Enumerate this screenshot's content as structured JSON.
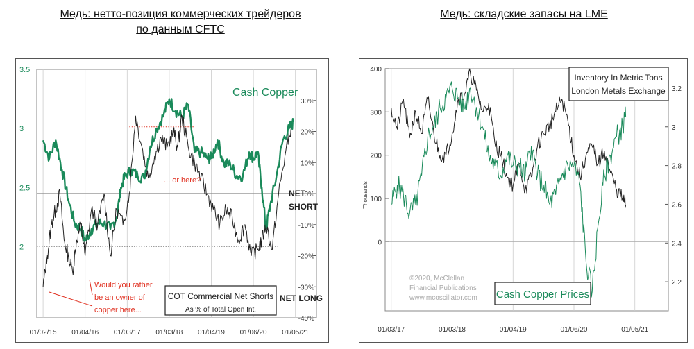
{
  "titles": {
    "left_line1": "Медь: нетто-позиция коммерческих трейдеров",
    "left_line2": "по данным CFTC",
    "right": "Медь: складские запасы на LME"
  },
  "colors": {
    "price": "#1a8a5a",
    "ink": "#222222",
    "red": "#e03020",
    "grid": "#cccccc",
    "left_axis": "#1a8a5a"
  },
  "chart_data": [
    {
      "type": "line",
      "title": "Медь: нетто-позиция коммерческих трейдеров по данным CFTC",
      "x_tick_labels": [
        "01/02/15",
        "01/04/16",
        "01/03/17",
        "01/03/18",
        "01/04/19",
        "01/06/20",
        "01/05/21"
      ],
      "y_left": {
        "label": "Cash Copper",
        "ticks": [
          "3.5",
          "3",
          "2.5",
          "2"
        ],
        "range": [
          1.4,
          3.5
        ]
      },
      "y_right": {
        "label": "COT Commercial Net Shorts, % of Total Open Int.",
        "ticks": [
          "30%",
          "20%",
          "10%",
          "0%",
          "-10%",
          "-20%",
          "-30%",
          "-40%"
        ],
        "range": [
          -40,
          40
        ]
      },
      "series": [
        {
          "name": "Cash Copper",
          "axis": "left",
          "x": [
            2015.0,
            2015.15,
            2015.3,
            2015.45,
            2015.6,
            2015.75,
            2015.9,
            2016.0,
            2016.15,
            2016.3,
            2016.45,
            2016.6,
            2016.75,
            2016.85,
            2016.95,
            2017.1,
            2017.25,
            2017.4,
            2017.55,
            2017.7,
            2017.85,
            2018.0,
            2018.15,
            2018.3,
            2018.45,
            2018.6,
            2018.75,
            2018.9,
            2019.0,
            2019.15,
            2019.3,
            2019.45,
            2019.6,
            2019.75,
            2019.9,
            2020.0,
            2020.1,
            2020.2,
            2020.3,
            2020.4,
            2020.55,
            2020.7,
            2020.85,
            2020.95
          ],
          "values": [
            2.9,
            2.75,
            2.9,
            2.65,
            2.4,
            2.2,
            2.15,
            2.05,
            2.15,
            2.2,
            2.2,
            2.15,
            2.25,
            2.5,
            2.6,
            2.65,
            2.6,
            2.58,
            2.85,
            3.0,
            3.1,
            3.25,
            3.15,
            3.1,
            3.2,
            2.8,
            2.8,
            2.75,
            2.75,
            2.9,
            2.7,
            2.7,
            2.6,
            2.6,
            2.8,
            2.75,
            2.8,
            2.5,
            2.15,
            2.35,
            2.6,
            2.9,
            3.0,
            3.05
          ]
        },
        {
          "name": "COT Commercial Net Shorts",
          "axis": "right",
          "x": [
            2015.0,
            2015.1,
            2015.2,
            2015.3,
            2015.4,
            2015.5,
            2015.6,
            2015.7,
            2015.8,
            2015.9,
            2016.0,
            2016.15,
            2016.3,
            2016.45,
            2016.6,
            2016.75,
            2016.9,
            2017.05,
            2017.2,
            2017.35,
            2017.5,
            2017.65,
            2017.8,
            2017.95,
            2018.1,
            2018.2,
            2018.3,
            2018.45,
            2018.6,
            2018.75,
            2018.9,
            2019.05,
            2019.2,
            2019.35,
            2019.5,
            2019.65,
            2019.8,
            2019.95,
            2020.1,
            2020.2,
            2020.3,
            2020.45,
            2020.6,
            2020.75,
            2020.9
          ],
          "values": [
            -30,
            -20,
            -10,
            -5,
            0,
            -15,
            -20,
            -25,
            -15,
            -10,
            -20,
            -5,
            -10,
            0,
            -20,
            -5,
            -10,
            0,
            25,
            15,
            5,
            12,
            18,
            15,
            20,
            15,
            25,
            15,
            10,
            5,
            0,
            -5,
            -10,
            -5,
            -8,
            -15,
            -10,
            -20,
            -18,
            -15,
            -10,
            -18,
            0,
            12,
            22
          ]
        }
      ],
      "annotations": {
        "or_here": "... or here?",
        "net_short_1": "NET",
        "net_short_2": "SHORT",
        "net_long": "NET LONG",
        "would_1": "Would you rather",
        "would_2": "be an owner of",
        "would_3": "copper here...",
        "cot_title": "COT Commercial Net Shorts",
        "cot_sub": "As % of Total Open Int."
      },
      "reference_lines": [
        0,
        21.5,
        -17
      ]
    },
    {
      "type": "line",
      "title": "Медь: складские запасы на LME",
      "x_tick_labels": [
        "01/03/17",
        "01/03/18",
        "01/04/19",
        "01/06/20",
        "01/05/21"
      ],
      "y_left": {
        "label": "Thousands",
        "ticks": [
          "400",
          "300",
          "200",
          "100",
          "0"
        ],
        "range": [
          -160,
          400
        ]
      },
      "y_right": {
        "ticks": [
          "3.2",
          "3",
          "2.8",
          "2.6",
          "2.4",
          "2.2"
        ],
        "range": [
          2.05,
          3.3
        ]
      },
      "series": [
        {
          "name": "Inventory In Metric Tons",
          "axis": "left",
          "x": [
            2017.0,
            2017.1,
            2017.2,
            2017.3,
            2017.4,
            2017.5,
            2017.6,
            2017.7,
            2017.8,
            2017.9,
            2018.0,
            2018.1,
            2018.2,
            2018.3,
            2018.4,
            2018.5,
            2018.6,
            2018.7,
            2018.8,
            2018.9,
            2019.0,
            2019.1,
            2019.2,
            2019.3,
            2019.4,
            2019.5,
            2019.6,
            2019.7,
            2019.8,
            2019.9,
            2020.0,
            2020.1,
            2020.2,
            2020.3,
            2020.4,
            2020.5,
            2020.6,
            2020.7,
            2020.8,
            2020.85
          ],
          "values": [
            310,
            260,
            330,
            240,
            300,
            250,
            330,
            250,
            200,
            200,
            250,
            330,
            340,
            390,
            350,
            300,
            320,
            230,
            200,
            150,
            130,
            180,
            120,
            150,
            220,
            250,
            270,
            300,
            330,
            280,
            200,
            150,
            200,
            220,
            180,
            210,
            160,
            120,
            100,
            85
          ]
        },
        {
          "name": "Cash Copper Prices",
          "axis": "right",
          "x": [
            2017.0,
            2017.1,
            2017.2,
            2017.3,
            2017.4,
            2017.5,
            2017.6,
            2017.7,
            2017.8,
            2017.9,
            2018.0,
            2018.1,
            2018.2,
            2018.3,
            2018.4,
            2018.5,
            2018.6,
            2018.7,
            2018.8,
            2018.9,
            2019.0,
            2019.1,
            2019.2,
            2019.3,
            2019.4,
            2019.5,
            2019.6,
            2019.7,
            2019.8,
            2019.9,
            2020.0,
            2020.1,
            2020.2,
            2020.3,
            2020.4,
            2020.5,
            2020.6,
            2020.7,
            2020.8,
            2020.85
          ],
          "values": [
            2.6,
            2.7,
            2.65,
            2.55,
            2.6,
            2.75,
            2.95,
            3.0,
            3.1,
            3.15,
            3.2,
            3.15,
            3.1,
            3.2,
            3.1,
            3.0,
            2.85,
            2.8,
            2.75,
            2.85,
            2.8,
            2.8,
            2.75,
            2.9,
            2.75,
            2.7,
            2.6,
            2.65,
            2.75,
            2.8,
            2.8,
            2.7,
            2.3,
            2.15,
            2.5,
            2.75,
            2.85,
            2.95,
            3.0,
            3.05
          ]
        }
      ],
      "annotations": {
        "legend_1": "Inventory In Metric Tons",
        "legend_2": "London Metals Exchange",
        "price_label": "Cash Copper Prices",
        "copyright_1": "©2020, McClellan",
        "copyright_2": "Financial Publications",
        "copyright_3": "www.mcoscillator.com"
      },
      "reference_lines": [
        0
      ]
    }
  ]
}
